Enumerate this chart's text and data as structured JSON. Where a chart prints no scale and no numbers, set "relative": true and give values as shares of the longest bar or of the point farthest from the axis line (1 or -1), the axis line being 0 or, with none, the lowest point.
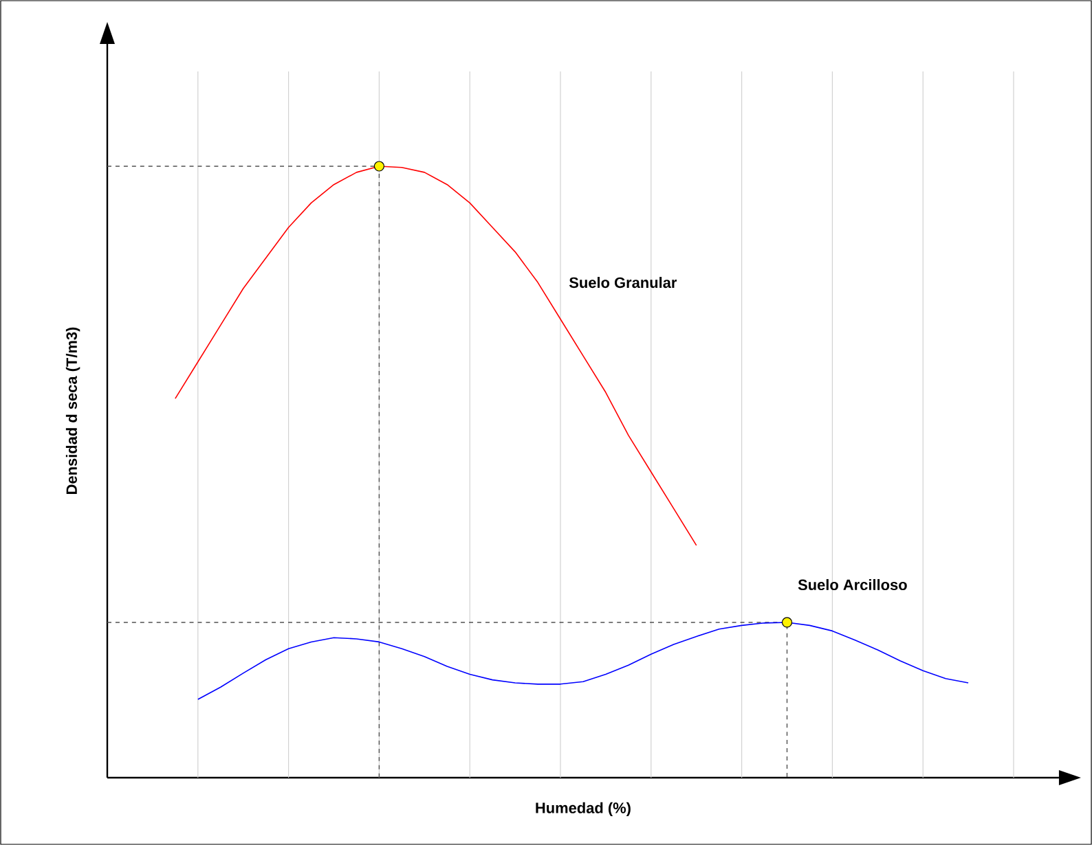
{
  "chart_data": {
    "type": "line",
    "relative": true,
    "xlabel": "Humedad (%)",
    "ylabel": "Densidad d seca (T/m3)",
    "categories": [
      null,
      null,
      null,
      null,
      null,
      null,
      null,
      null,
      null,
      null,
      null,
      null,
      null,
      null,
      null,
      null,
      null,
      null,
      null,
      null,
      null,
      null,
      null,
      null,
      null,
      null,
      null,
      null,
      null,
      null,
      null,
      null,
      null,
      null,
      null,
      null,
      null,
      null,
      null,
      null,
      null
    ],
    "grid": "x",
    "series": [
      {
        "name": "Suelo Granular",
        "color": "#ff0000",
        "values": [
          null,
          null,
          null,
          0.62,
          0.68,
          0.74,
          0.8,
          0.85,
          0.9,
          0.94,
          0.97,
          0.99,
          1.0,
          0.998,
          0.99,
          0.97,
          0.94,
          0.9,
          0.86,
          0.81,
          0.75,
          0.69,
          0.63,
          0.56,
          0.5,
          0.44,
          0.38,
          null,
          null,
          null,
          null,
          null,
          null,
          null,
          null,
          null,
          null,
          null,
          null,
          null,
          null
        ]
      },
      {
        "name": "Suelo Arcilloso",
        "color": "#0000ff",
        "values": [
          null,
          null,
          null,
          null,
          0.128,
          0.148,
          0.171,
          0.193,
          0.211,
          0.222,
          0.229,
          0.227,
          0.222,
          0.211,
          0.198,
          0.182,
          0.169,
          0.16,
          0.155,
          0.153,
          0.153,
          0.157,
          0.169,
          0.184,
          0.202,
          0.218,
          0.231,
          0.243,
          0.249,
          0.253,
          0.254,
          0.249,
          0.24,
          0.225,
          0.209,
          0.191,
          0.175,
          0.162,
          0.155,
          null,
          null
        ]
      }
    ],
    "ref_lines": [
      {
        "axis": "y",
        "value": 1.0,
        "color": "#505050",
        "line_style": "dashed"
      },
      {
        "axis": "y",
        "value": 0.254,
        "color": "#505050",
        "line_style": "dashed"
      }
    ]
  }
}
